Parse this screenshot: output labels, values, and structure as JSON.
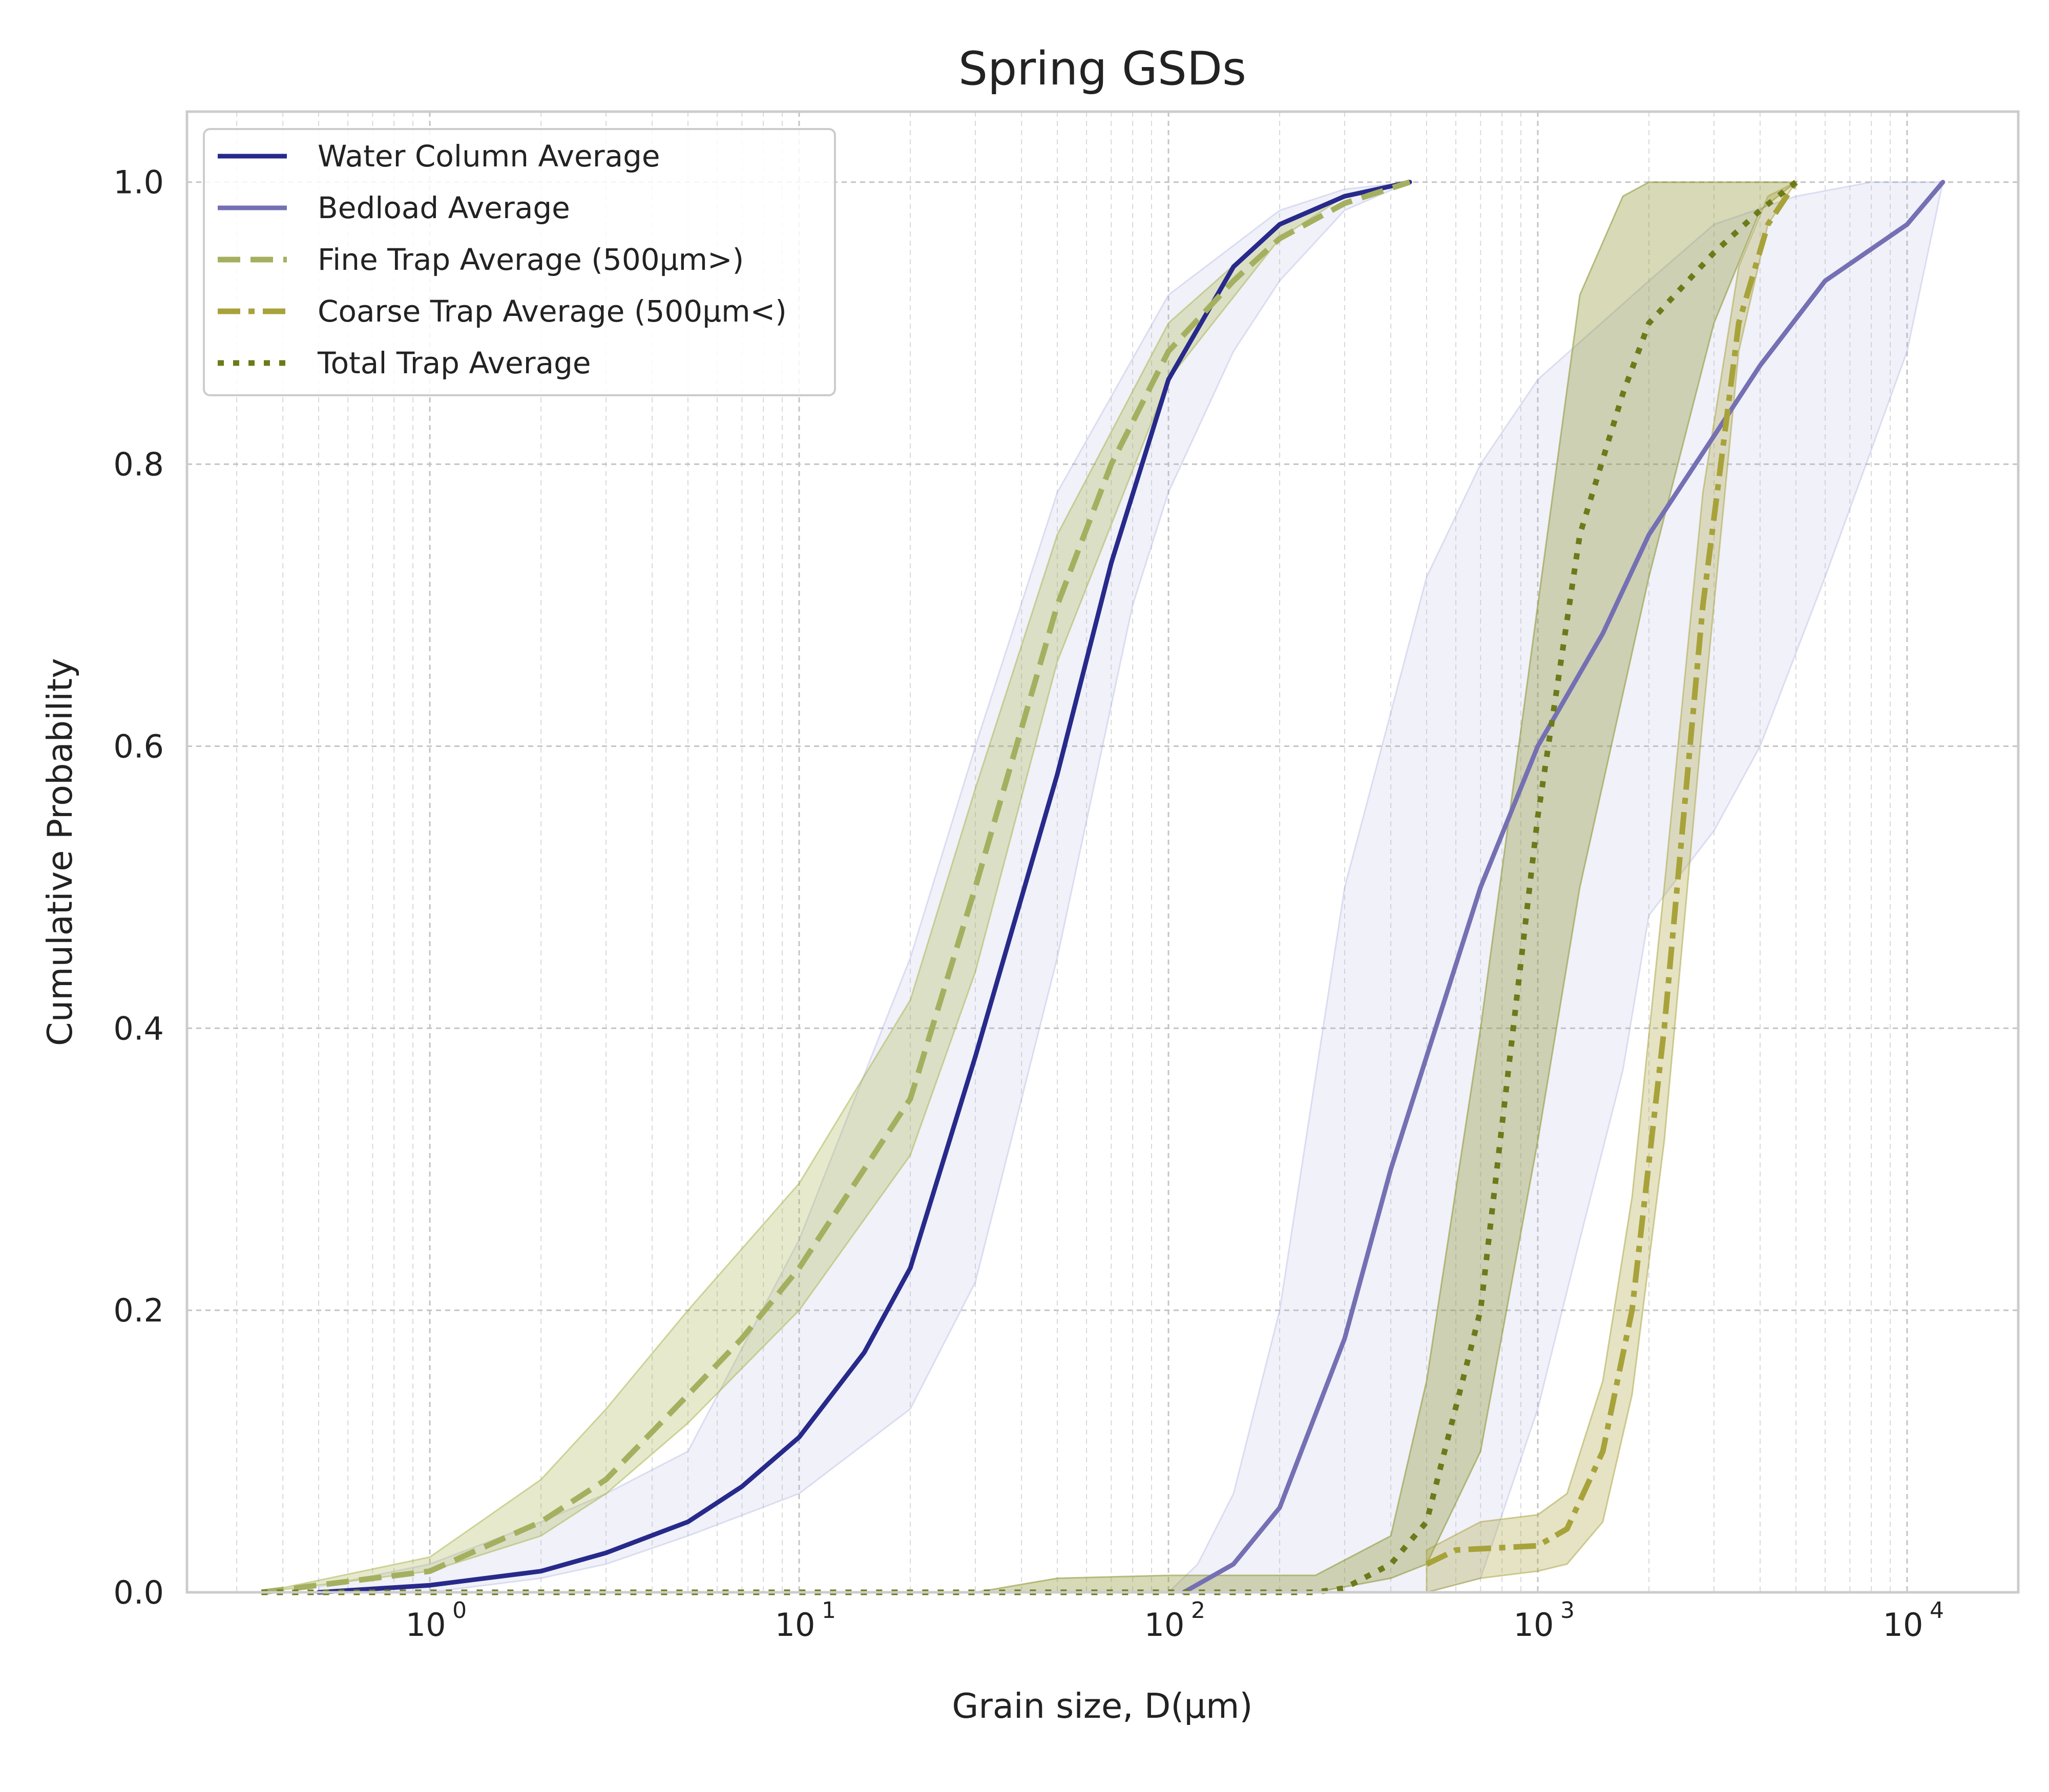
{
  "chart_data": {
    "type": "line",
    "title": "Spring GSDs",
    "xlabel": "Grain size, D(μm)",
    "ylabel": "Cumulative Probability",
    "x_scale": "log",
    "xlim": [
      0.22,
      20000
    ],
    "ylim": [
      0,
      1.05
    ],
    "grid": true,
    "legend_position": "top-left",
    "x_ticks": [
      {
        "value": 1,
        "base": "10",
        "exp": "0"
      },
      {
        "value": 10,
        "base": "10",
        "exp": "1"
      },
      {
        "value": 100,
        "base": "10",
        "exp": "2"
      },
      {
        "value": 1000,
        "base": "10",
        "exp": "3"
      },
      {
        "value": 10000,
        "base": "10",
        "exp": "4"
      }
    ],
    "y_ticks": [
      {
        "value": 0.0,
        "label": "0.0"
      },
      {
        "value": 0.2,
        "label": "0.2"
      },
      {
        "value": 0.4,
        "label": "0.4"
      },
      {
        "value": 0.6,
        "label": "0.6"
      },
      {
        "value": 0.8,
        "label": "0.8"
      },
      {
        "value": 1.0,
        "label": "1.0"
      }
    ],
    "bands": [
      {
        "color": "#aab4e0",
        "opacity": 0.18,
        "upper": [
          [
            0.5,
            0.004
          ],
          [
            1,
            0.02
          ],
          [
            2,
            0.05
          ],
          [
            3,
            0.07
          ],
          [
            5,
            0.1
          ],
          [
            10,
            0.25
          ],
          [
            20,
            0.45
          ],
          [
            30,
            0.6
          ],
          [
            50,
            0.78
          ],
          [
            100,
            0.92
          ],
          [
            200,
            0.98
          ],
          [
            300,
            0.995
          ],
          [
            450,
            1.0
          ]
        ],
        "lower": [
          [
            0.5,
            0.0
          ],
          [
            1,
            0.0
          ],
          [
            2,
            0.01
          ],
          [
            3,
            0.02
          ],
          [
            5,
            0.04
          ],
          [
            10,
            0.07
          ],
          [
            20,
            0.13
          ],
          [
            30,
            0.22
          ],
          [
            50,
            0.45
          ],
          [
            80,
            0.7
          ],
          [
            100,
            0.78
          ],
          [
            150,
            0.88
          ],
          [
            200,
            0.93
          ],
          [
            300,
            0.98
          ],
          [
            450,
            1.0
          ]
        ]
      },
      {
        "color": "#aab4e0",
        "opacity": 0.18,
        "upper": [
          [
            100,
            0.0
          ],
          [
            120,
            0.02
          ],
          [
            150,
            0.07
          ],
          [
            200,
            0.2
          ],
          [
            300,
            0.5
          ],
          [
            500,
            0.72
          ],
          [
            700,
            0.8
          ],
          [
            1000,
            0.86
          ],
          [
            2000,
            0.93
          ],
          [
            3000,
            0.97
          ],
          [
            5000,
            0.99
          ],
          [
            8000,
            1.0
          ],
          [
            12500,
            1.0
          ]
        ],
        "lower": [
          [
            100,
            0.0
          ],
          [
            300,
            0.0
          ],
          [
            500,
            0.0
          ],
          [
            700,
            0.01
          ],
          [
            1000,
            0.13
          ],
          [
            1300,
            0.25
          ],
          [
            1700,
            0.37
          ],
          [
            2000,
            0.48
          ],
          [
            3000,
            0.54
          ],
          [
            4000,
            0.6
          ],
          [
            6000,
            0.72
          ],
          [
            10000,
            0.88
          ],
          [
            12500,
            1.0
          ]
        ]
      },
      {
        "color": "#a4b043",
        "opacity": 0.28,
        "upper": [
          [
            0.35,
            0.0
          ],
          [
            1,
            0.025
          ],
          [
            2,
            0.08
          ],
          [
            3,
            0.13
          ],
          [
            5,
            0.2
          ],
          [
            10,
            0.29
          ],
          [
            20,
            0.42
          ],
          [
            30,
            0.57
          ],
          [
            50,
            0.75
          ],
          [
            100,
            0.9
          ],
          [
            200,
            0.97
          ],
          [
            300,
            0.99
          ],
          [
            450,
            1.0
          ]
        ],
        "lower": [
          [
            0.35,
            0.0
          ],
          [
            1,
            0.015
          ],
          [
            2,
            0.04
          ],
          [
            3,
            0.07
          ],
          [
            5,
            0.12
          ],
          [
            10,
            0.2
          ],
          [
            20,
            0.31
          ],
          [
            30,
            0.44
          ],
          [
            50,
            0.66
          ],
          [
            100,
            0.86
          ],
          [
            200,
            0.96
          ],
          [
            300,
            0.99
          ],
          [
            450,
            1.0
          ]
        ]
      },
      {
        "color": "#8d9330",
        "opacity": 0.35,
        "upper": [
          [
            30,
            0.0
          ],
          [
            50,
            0.01
          ],
          [
            100,
            0.012
          ],
          [
            250,
            0.012
          ],
          [
            400,
            0.04
          ],
          [
            500,
            0.15
          ],
          [
            700,
            0.4
          ],
          [
            1000,
            0.7
          ],
          [
            1300,
            0.92
          ],
          [
            1700,
            0.99
          ],
          [
            2000,
            1.0
          ],
          [
            5000,
            1.0
          ]
        ],
        "lower": [
          [
            30,
            0.0
          ],
          [
            100,
            0.0
          ],
          [
            250,
            0.0
          ],
          [
            400,
            0.01
          ],
          [
            500,
            0.02
          ],
          [
            700,
            0.1
          ],
          [
            1000,
            0.32
          ],
          [
            1300,
            0.5
          ],
          [
            2000,
            0.72
          ],
          [
            3000,
            0.9
          ],
          [
            4000,
            0.98
          ],
          [
            5000,
            1.0
          ]
        ]
      },
      {
        "color": "#a8a23a",
        "opacity": 0.3,
        "upper": [
          [
            500,
            0.03
          ],
          [
            700,
            0.05
          ],
          [
            1000,
            0.055
          ],
          [
            1200,
            0.07
          ],
          [
            1500,
            0.15
          ],
          [
            1800,
            0.28
          ],
          [
            2200,
            0.5
          ],
          [
            2800,
            0.78
          ],
          [
            3500,
            0.94
          ],
          [
            4200,
            0.99
          ],
          [
            5000,
            1.0
          ]
        ],
        "lower": [
          [
            500,
            0.0
          ],
          [
            700,
            0.01
          ],
          [
            1000,
            0.015
          ],
          [
            1200,
            0.02
          ],
          [
            1500,
            0.05
          ],
          [
            1800,
            0.14
          ],
          [
            2200,
            0.32
          ],
          [
            2800,
            0.62
          ],
          [
            3500,
            0.88
          ],
          [
            4200,
            0.97
          ],
          [
            5000,
            1.0
          ]
        ]
      }
    ],
    "series": [
      {
        "name": "Water Column Average",
        "color": "#272a8a",
        "dash": "solid",
        "width": 9,
        "points": [
          [
            0.5,
            0.0
          ],
          [
            1,
            0.005
          ],
          [
            2,
            0.015
          ],
          [
            3,
            0.028
          ],
          [
            5,
            0.05
          ],
          [
            7,
            0.075
          ],
          [
            10,
            0.11
          ],
          [
            15,
            0.17
          ],
          [
            20,
            0.23
          ],
          [
            30,
            0.38
          ],
          [
            50,
            0.58
          ],
          [
            70,
            0.73
          ],
          [
            100,
            0.86
          ],
          [
            150,
            0.94
          ],
          [
            200,
            0.97
          ],
          [
            300,
            0.99
          ],
          [
            450,
            1.0
          ]
        ]
      },
      {
        "name": "Bedload Average",
        "color": "#7570b3",
        "dash": "solid",
        "width": 9,
        "points": [
          [
            110,
            0.0
          ],
          [
            150,
            0.02
          ],
          [
            200,
            0.06
          ],
          [
            300,
            0.18
          ],
          [
            400,
            0.3
          ],
          [
            500,
            0.38
          ],
          [
            700,
            0.5
          ],
          [
            1000,
            0.6
          ],
          [
            1500,
            0.68
          ],
          [
            2000,
            0.75
          ],
          [
            3000,
            0.82
          ],
          [
            4000,
            0.87
          ],
          [
            6000,
            0.93
          ],
          [
            10000,
            0.97
          ],
          [
            12500,
            1.0
          ]
        ]
      },
      {
        "name": "Fine Trap Average (500μm>)",
        "color": "#a4b060",
        "dash": "dashed",
        "width": 11,
        "points": [
          [
            0.35,
            0.0
          ],
          [
            1,
            0.015
          ],
          [
            2,
            0.05
          ],
          [
            3,
            0.08
          ],
          [
            5,
            0.14
          ],
          [
            7,
            0.18
          ],
          [
            10,
            0.23
          ],
          [
            15,
            0.3
          ],
          [
            20,
            0.35
          ],
          [
            30,
            0.5
          ],
          [
            50,
            0.7
          ],
          [
            70,
            0.8
          ],
          [
            100,
            0.88
          ],
          [
            150,
            0.93
          ],
          [
            200,
            0.96
          ],
          [
            300,
            0.985
          ],
          [
            450,
            1.0
          ]
        ]
      },
      {
        "name": "Coarse Trap Average (500μm<)",
        "color": "#a8a23a",
        "dash": "dashdot",
        "width": 11,
        "points": [
          [
            500,
            0.02
          ],
          [
            600,
            0.03
          ],
          [
            1000,
            0.033
          ],
          [
            1200,
            0.045
          ],
          [
            1500,
            0.1
          ],
          [
            1800,
            0.2
          ],
          [
            2200,
            0.4
          ],
          [
            2800,
            0.7
          ],
          [
            3500,
            0.9
          ],
          [
            4200,
            0.97
          ],
          [
            5000,
            1.0
          ]
        ]
      },
      {
        "name": "Total Trap Average",
        "color": "#6b7b1a",
        "dash": "dotted",
        "width": 11,
        "points": [
          [
            0.35,
            0.0
          ],
          [
            100,
            0.0
          ],
          [
            250,
            0.0
          ],
          [
            300,
            0.003
          ],
          [
            400,
            0.02
          ],
          [
            500,
            0.05
          ],
          [
            700,
            0.2
          ],
          [
            1000,
            0.55
          ],
          [
            1300,
            0.75
          ],
          [
            1700,
            0.85
          ],
          [
            2000,
            0.9
          ],
          [
            3000,
            0.95
          ],
          [
            4000,
            0.98
          ],
          [
            5000,
            1.0
          ]
        ]
      }
    ]
  }
}
